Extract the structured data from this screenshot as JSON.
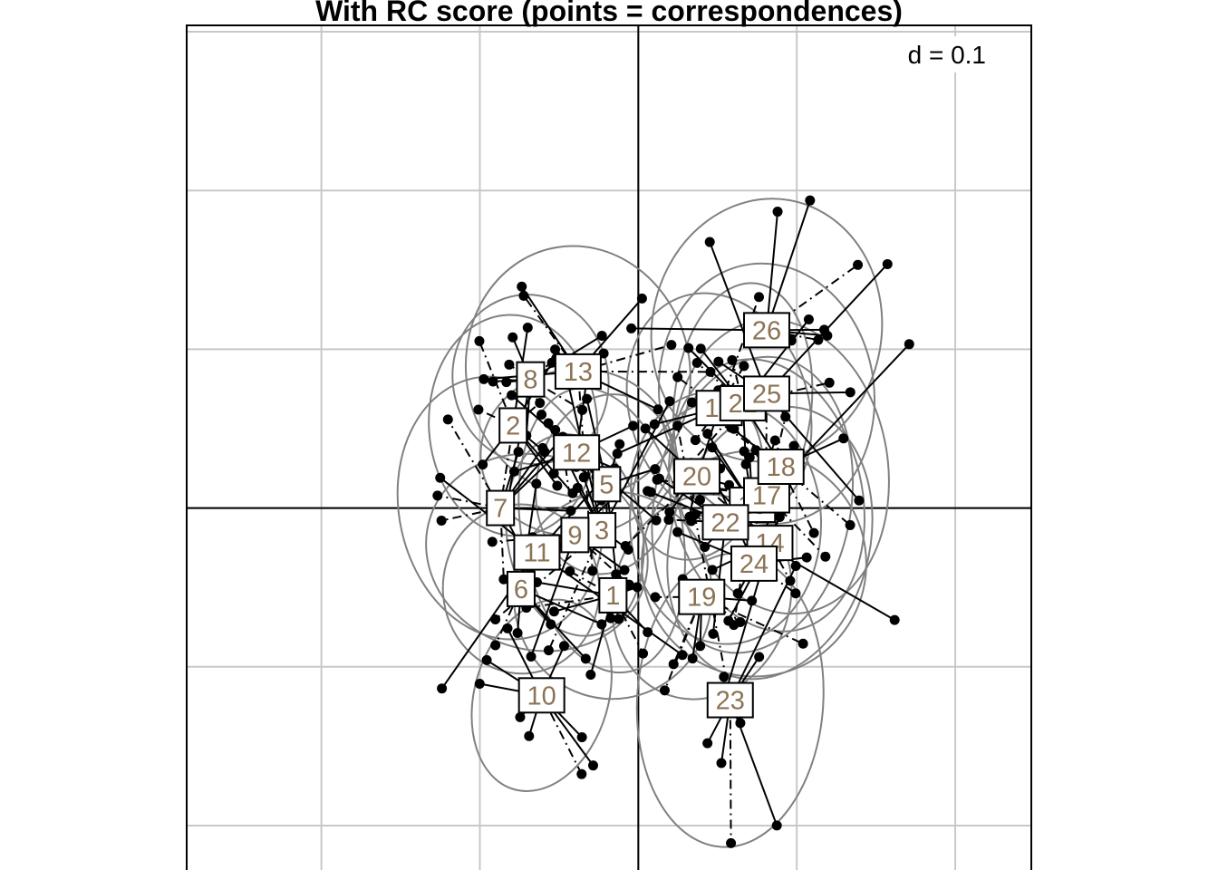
{
  "chart_data": {
    "type": "scatter",
    "title": "With RC score (points = correspondences)",
    "grid_label": "d = 0.1",
    "grid": true,
    "xlim": [
      -0.285,
      0.248
    ],
    "ylim": [
      -0.228,
      0.304
    ],
    "grid_step": 0.1,
    "colors": {
      "points": "#000000",
      "ellipse": "#808080",
      "label": "#8B7355",
      "grid": "#c8c8c8"
    },
    "groups": [
      {
        "label": "1",
        "x": -0.016,
        "y": -0.055
      },
      {
        "label": "2",
        "x": -0.079,
        "y": 0.052
      },
      {
        "label": "3",
        "x": -0.023,
        "y": -0.014
      },
      {
        "label": "5",
        "x": -0.02,
        "y": 0.015
      },
      {
        "label": "6",
        "x": -0.074,
        "y": -0.051
      },
      {
        "label": "7",
        "x": -0.087,
        "y": 0.0
      },
      {
        "label": "8",
        "x": -0.068,
        "y": 0.081
      },
      {
        "label": "9",
        "x": -0.04,
        "y": -0.017
      },
      {
        "label": "10",
        "x": -0.061,
        "y": -0.118
      },
      {
        "label": "11",
        "x": -0.064,
        "y": -0.028
      },
      {
        "label": "12",
        "x": -0.039,
        "y": 0.035
      },
      {
        "label": "13",
        "x": -0.038,
        "y": 0.086
      },
      {
        "label": "14",
        "x": 0.083,
        "y": -0.022
      },
      {
        "label": "15",
        "x": 0.072,
        "y": 0.002
      },
      {
        "label": "16",
        "x": 0.051,
        "y": 0.063
      },
      {
        "label": "17",
        "x": 0.081,
        "y": 0.008
      },
      {
        "label": "18",
        "x": 0.09,
        "y": 0.026
      },
      {
        "label": "19",
        "x": 0.04,
        "y": -0.056
      },
      {
        "label": "20",
        "x": 0.037,
        "y": 0.02
      },
      {
        "label": "21",
        "x": 0.066,
        "y": 0.066
      },
      {
        "label": "22",
        "x": 0.055,
        "y": -0.009
      },
      {
        "label": "23",
        "x": 0.058,
        "y": -0.121
      },
      {
        "label": "24",
        "x": 0.073,
        "y": -0.035
      },
      {
        "label": "25",
        "x": 0.081,
        "y": 0.072
      },
      {
        "label": "26",
        "x": 0.081,
        "y": 0.112
      }
    ]
  }
}
